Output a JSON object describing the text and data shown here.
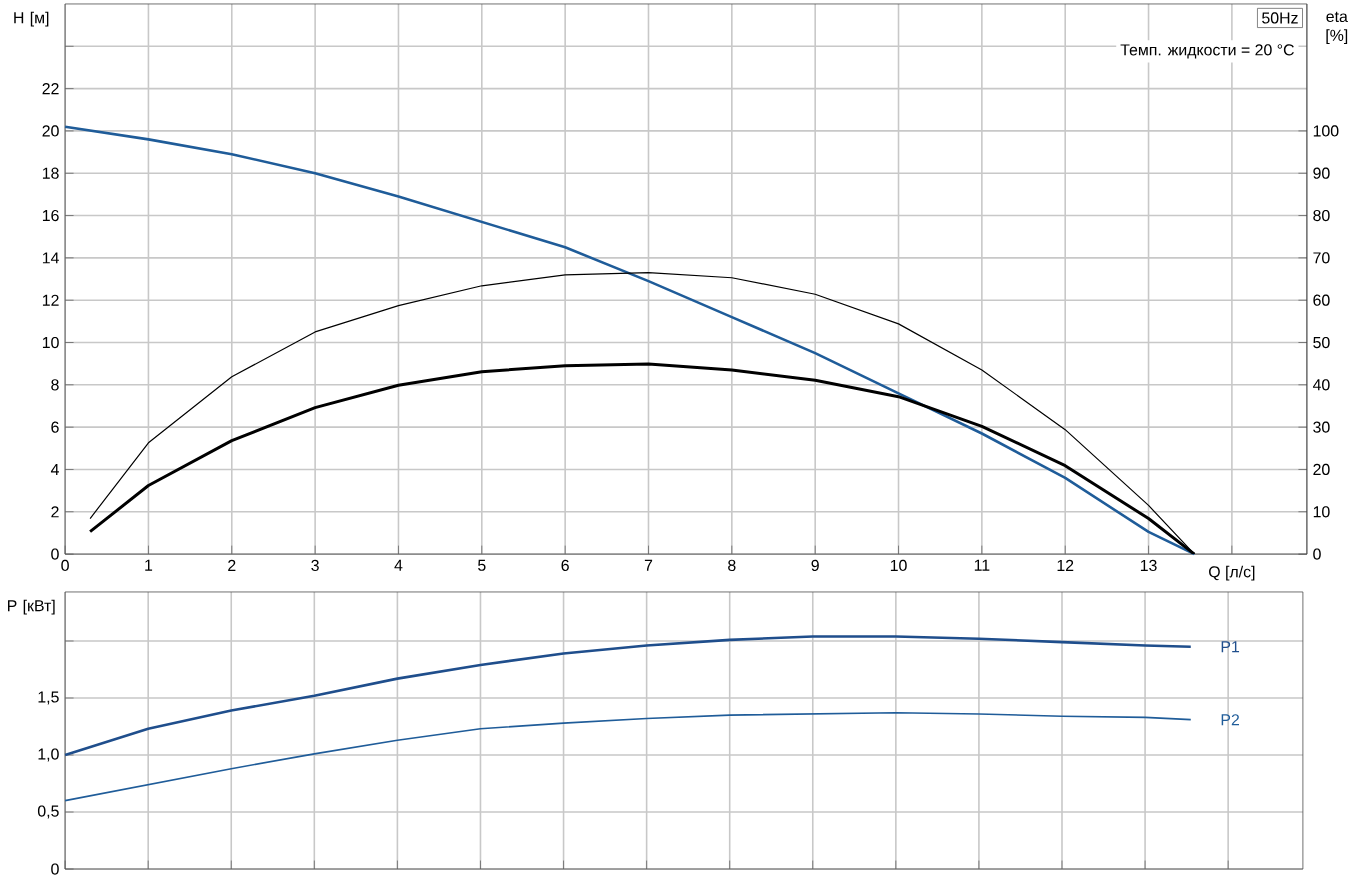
{
  "chart_data": [
    {
      "type": "line",
      "title": "50Hz",
      "xlabel": "Q [л/с]",
      "ylabel": "H [м]",
      "y2label": "eta [%]",
      "annotations": [
        "Темп. жидкости = 20 °C"
      ],
      "xlim": [
        0,
        14.9
      ],
      "xticks": [
        0,
        1,
        2,
        3,
        4,
        5,
        6,
        7,
        8,
        9,
        10,
        11,
        12,
        13,
        {
          "value": 14,
          "label": null
        }
      ],
      "ylim": [
        0,
        26
      ],
      "yticks": [
        0,
        2,
        4,
        6,
        8,
        10,
        12,
        14,
        16,
        18,
        20,
        22,
        {
          "value": 24,
          "label": null
        }
      ],
      "y2lim": [
        0,
        130
      ],
      "y2ticks": [
        0,
        10,
        20,
        30,
        40,
        50,
        60,
        70,
        80,
        90,
        100
      ],
      "grid": true,
      "series": [
        {
          "color": "#1f5c99",
          "x": [
            0,
            1,
            2,
            3,
            4,
            5,
            6,
            7,
            8,
            9,
            10,
            11,
            12,
            13,
            13.55
          ],
          "values": [
            20.2,
            19.6,
            18.9,
            18.0,
            16.9,
            15.7,
            14.5,
            12.9,
            11.2,
            9.5,
            7.6,
            5.7,
            3.6,
            1.05,
            0
          ]
        },
        {
          "color": "#000000",
          "axis": "y2",
          "x": [
            0.3,
            1,
            2,
            3,
            4,
            5,
            6,
            7,
            8,
            9,
            10,
            11,
            12,
            13,
            13.55
          ],
          "values": [
            8.4,
            26.3,
            41.9,
            52.5,
            58.7,
            63.4,
            66.0,
            66.5,
            65.3,
            61.4,
            54.4,
            43.5,
            29.4,
            11.5,
            0
          ]
        },
        {
          "color": "#000000",
          "axis": "y2",
          "x": [
            0.3,
            1,
            2,
            3,
            4,
            5,
            6,
            7,
            8,
            9,
            10,
            11,
            12,
            13,
            13.55
          ],
          "values": [
            5.3,
            16.2,
            26.8,
            34.6,
            39.9,
            43.1,
            44.5,
            44.9,
            43.5,
            41.1,
            37.2,
            30.2,
            20.9,
            8.4,
            0
          ]
        }
      ]
    },
    {
      "type": "line",
      "ylabel": "P [кВт]",
      "xlim": [
        0,
        14.9
      ],
      "xticks": [
        0,
        1,
        2,
        3,
        4,
        5,
        6,
        7,
        8,
        9,
        10,
        11,
        12,
        13,
        14
      ],
      "ylim": [
        0,
        2.43
      ],
      "yticks": [
        0,
        {
          "value": 0.5,
          "label": "0,5"
        },
        {
          "value": 1.0,
          "label": "1,0"
        },
        {
          "value": 1.5,
          "label": "1,5"
        },
        {
          "value": 2.0,
          "label": null
        }
      ],
      "grid": true,
      "tick_labels": "y",
      "series": [
        {
          "name": "P1",
          "color": "#1f4e8c",
          "x": [
            0,
            1,
            2,
            3,
            4,
            5,
            6,
            7,
            8,
            9,
            10,
            11,
            12,
            13,
            13.55
          ],
          "values": [
            1.0,
            1.23,
            1.39,
            1.52,
            1.67,
            1.79,
            1.89,
            1.96,
            2.01,
            2.04,
            2.04,
            2.02,
            1.99,
            1.96,
            1.95
          ]
        },
        {
          "name": "P2",
          "color": "#1f5c99",
          "x": [
            0,
            1,
            2,
            3,
            4,
            5,
            6,
            7,
            8,
            9,
            10,
            11,
            12,
            13,
            13.55
          ],
          "values": [
            0.6,
            0.74,
            0.88,
            1.01,
            1.13,
            1.23,
            1.28,
            1.32,
            1.35,
            1.36,
            1.37,
            1.36,
            1.34,
            1.33,
            1.31
          ]
        }
      ]
    }
  ]
}
